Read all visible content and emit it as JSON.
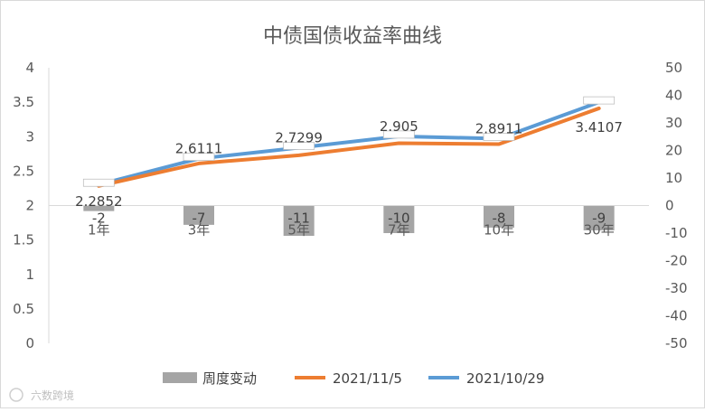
{
  "chart_data": {
    "type": "bar+line",
    "title": "中债国债收益率曲线",
    "categories": [
      "1年",
      "3年",
      "5年",
      "7年",
      "10年",
      "30年"
    ],
    "y_left": {
      "range": [
        0,
        4
      ],
      "ticks": [
        "0",
        "0.5",
        "1",
        "1.5",
        "2",
        "2.5",
        "3",
        "3.5",
        "4"
      ]
    },
    "y_right": {
      "range": [
        -50,
        50
      ],
      "ticks": [
        "-50",
        "-40",
        "-30",
        "-20",
        "-10",
        "0",
        "10",
        "20",
        "30",
        "40",
        "50"
      ]
    },
    "series": [
      {
        "name": "周度变动",
        "type": "bar",
        "axis": "right",
        "color": "#a5a5a5",
        "values": [
          -2,
          -7,
          -11,
          -10,
          -8,
          -9
        ],
        "labels": [
          "-2",
          "-7",
          "-11",
          "-10",
          "-8",
          "-9"
        ]
      },
      {
        "name": "2021/11/5",
        "type": "line",
        "axis": "left",
        "color": "#ed7d31",
        "values": [
          2.2852,
          2.6111,
          2.7299,
          2.905,
          2.8911,
          3.4107
        ],
        "labels": [
          "2.2852",
          "2.6111",
          "2.7299",
          "2.905",
          "2.8911",
          "3.4107"
        ]
      },
      {
        "name": "2021/10/29",
        "type": "line",
        "axis": "left",
        "color": "#5b9bd5",
        "values": [
          2.305,
          2.681,
          2.84,
          3.005,
          2.971,
          3.5
        ]
      }
    ],
    "legend_position": "bottom",
    "grid": false
  },
  "watermark": "六数跨境"
}
